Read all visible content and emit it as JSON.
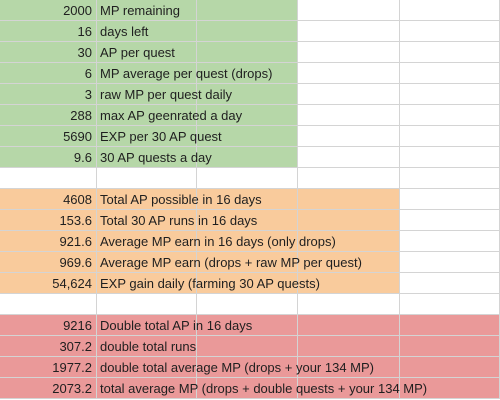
{
  "sections": [
    {
      "name": "green",
      "rows": [
        {
          "value": "2000",
          "label": "MP remaining"
        },
        {
          "value": "16",
          "label": "days left"
        },
        {
          "value": "30",
          "label": "AP per quest"
        },
        {
          "value": "6",
          "label": "MP average per quest (drops)"
        },
        {
          "value": "3",
          "label": "raw MP per quest daily"
        },
        {
          "value": "288",
          "label": "max AP geenrated a day"
        },
        {
          "value": "5690",
          "label": "EXP per 30 AP quest"
        },
        {
          "value": "9.6",
          "label": "30 AP quests a day"
        }
      ]
    },
    {
      "name": "orange",
      "rows": [
        {
          "value": "4608",
          "label": "Total AP possible in 16 days"
        },
        {
          "value": "153.6",
          "label": "Total 30 AP runs in 16 days"
        },
        {
          "value": "921.6",
          "label": "Average MP earn in 16 days (only drops)"
        },
        {
          "value": "969.6",
          "label": "Average MP earn (drops + raw MP per quest)"
        },
        {
          "value": "54,624",
          "label": "EXP gain daily (farming 30 AP quests)"
        }
      ]
    },
    {
      "name": "red",
      "rows": [
        {
          "value": "9216",
          "label": "Double total AP in 16 days"
        },
        {
          "value": "307.2",
          "label": "double total runs"
        },
        {
          "value": "1977.2",
          "label": "double total average MP (drops + your 134 MP)"
        },
        {
          "value": "2073.2",
          "label": "total average MP (drops + double quests + your 134 MP)"
        }
      ]
    }
  ],
  "colors": {
    "green": "#b6d7a8",
    "orange": "#f9cb9c",
    "red": "#ea9999"
  }
}
